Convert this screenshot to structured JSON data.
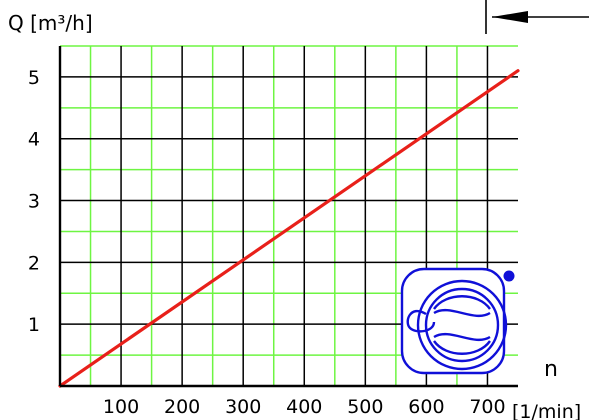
{
  "chart_data": {
    "type": "line",
    "ylabel": "Q [m³/h]",
    "xlabel_symbol": "n",
    "xlabel_unit": "[1/min]",
    "xlim": [
      0,
      750
    ],
    "ylim": [
      0,
      5.5
    ],
    "x_ticks": [
      100,
      200,
      300,
      400,
      500,
      600,
      700
    ],
    "y_ticks": [
      1,
      2,
      3,
      4,
      5
    ],
    "grid": true,
    "series": [
      {
        "points": [
          [
            0,
            0
          ],
          [
            750,
            5.1
          ]
        ]
      }
    ]
  },
  "colors": {
    "axis": "#000000",
    "major_grid": "#000000",
    "minor_grid": "#6ef542",
    "line": "#e8201a",
    "pump_icon": "#1010d8",
    "text": "#000000",
    "arrow": "#000000"
  },
  "icons": {
    "pump": "gear-pump-symbol",
    "direction": "arrow-left-icon"
  }
}
